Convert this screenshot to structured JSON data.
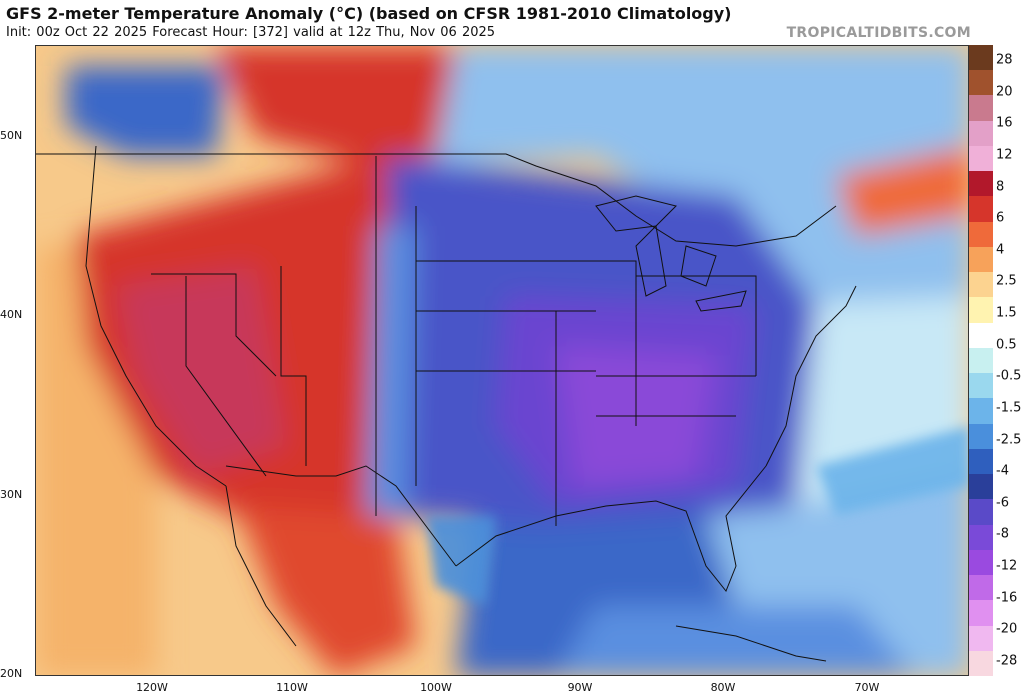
{
  "header": {
    "title": "GFS 2-meter Temperature Anomaly (°C) (based on CFSR 1981-2010 Climatology)",
    "subtitle": "Init: 00z Oct 22 2025   Forecast Hour: [372]   valid at 12z Thu, Nov 06 2025",
    "brand": "TROPICALTIDBITS.COM"
  },
  "axes": {
    "lat_labels": [
      "50N",
      "40N",
      "30N",
      "20N"
    ],
    "lon_labels": [
      "120W",
      "110W",
      "100W",
      "90W",
      "80W",
      "70W"
    ]
  },
  "colorbar": {
    "labels": [
      "28",
      "20",
      "16",
      "12",
      "8",
      "6",
      "4",
      "2.5",
      "1.5",
      "0.5",
      "-0.5",
      "-1.5",
      "-2.5",
      "-4",
      "-6",
      "-8",
      "-12",
      "-16",
      "-20",
      "-28"
    ],
    "colors": [
      "#6b3a1e",
      "#a0522d",
      "#c97a8e",
      "#e3a0c8",
      "#f0b0d8",
      "#b2182b",
      "#d6352b",
      "#ef6a3a",
      "#f7a25a",
      "#fcd390",
      "#fff3b0",
      "#ffffff",
      "#c8f0f0",
      "#9ad8ee",
      "#6cb4ea",
      "#4a8fdc",
      "#2f5fbe",
      "#2a3f9a",
      "#5a4ac8",
      "#7a4ad8",
      "#9a4ae0",
      "#c06ae8",
      "#e090f0",
      "#f0b8f0",
      "#f8d8e0"
    ]
  },
  "map": {
    "warm_colors": [
      "#b2182b",
      "#d6352b",
      "#ef6a3a",
      "#f7a25a",
      "#fcd390"
    ],
    "cold_colors": [
      "#5a3fc8",
      "#4a55c8",
      "#3a68c8",
      "#5a8fe0",
      "#8fc0ee",
      "#c8e8f6"
    ]
  }
}
